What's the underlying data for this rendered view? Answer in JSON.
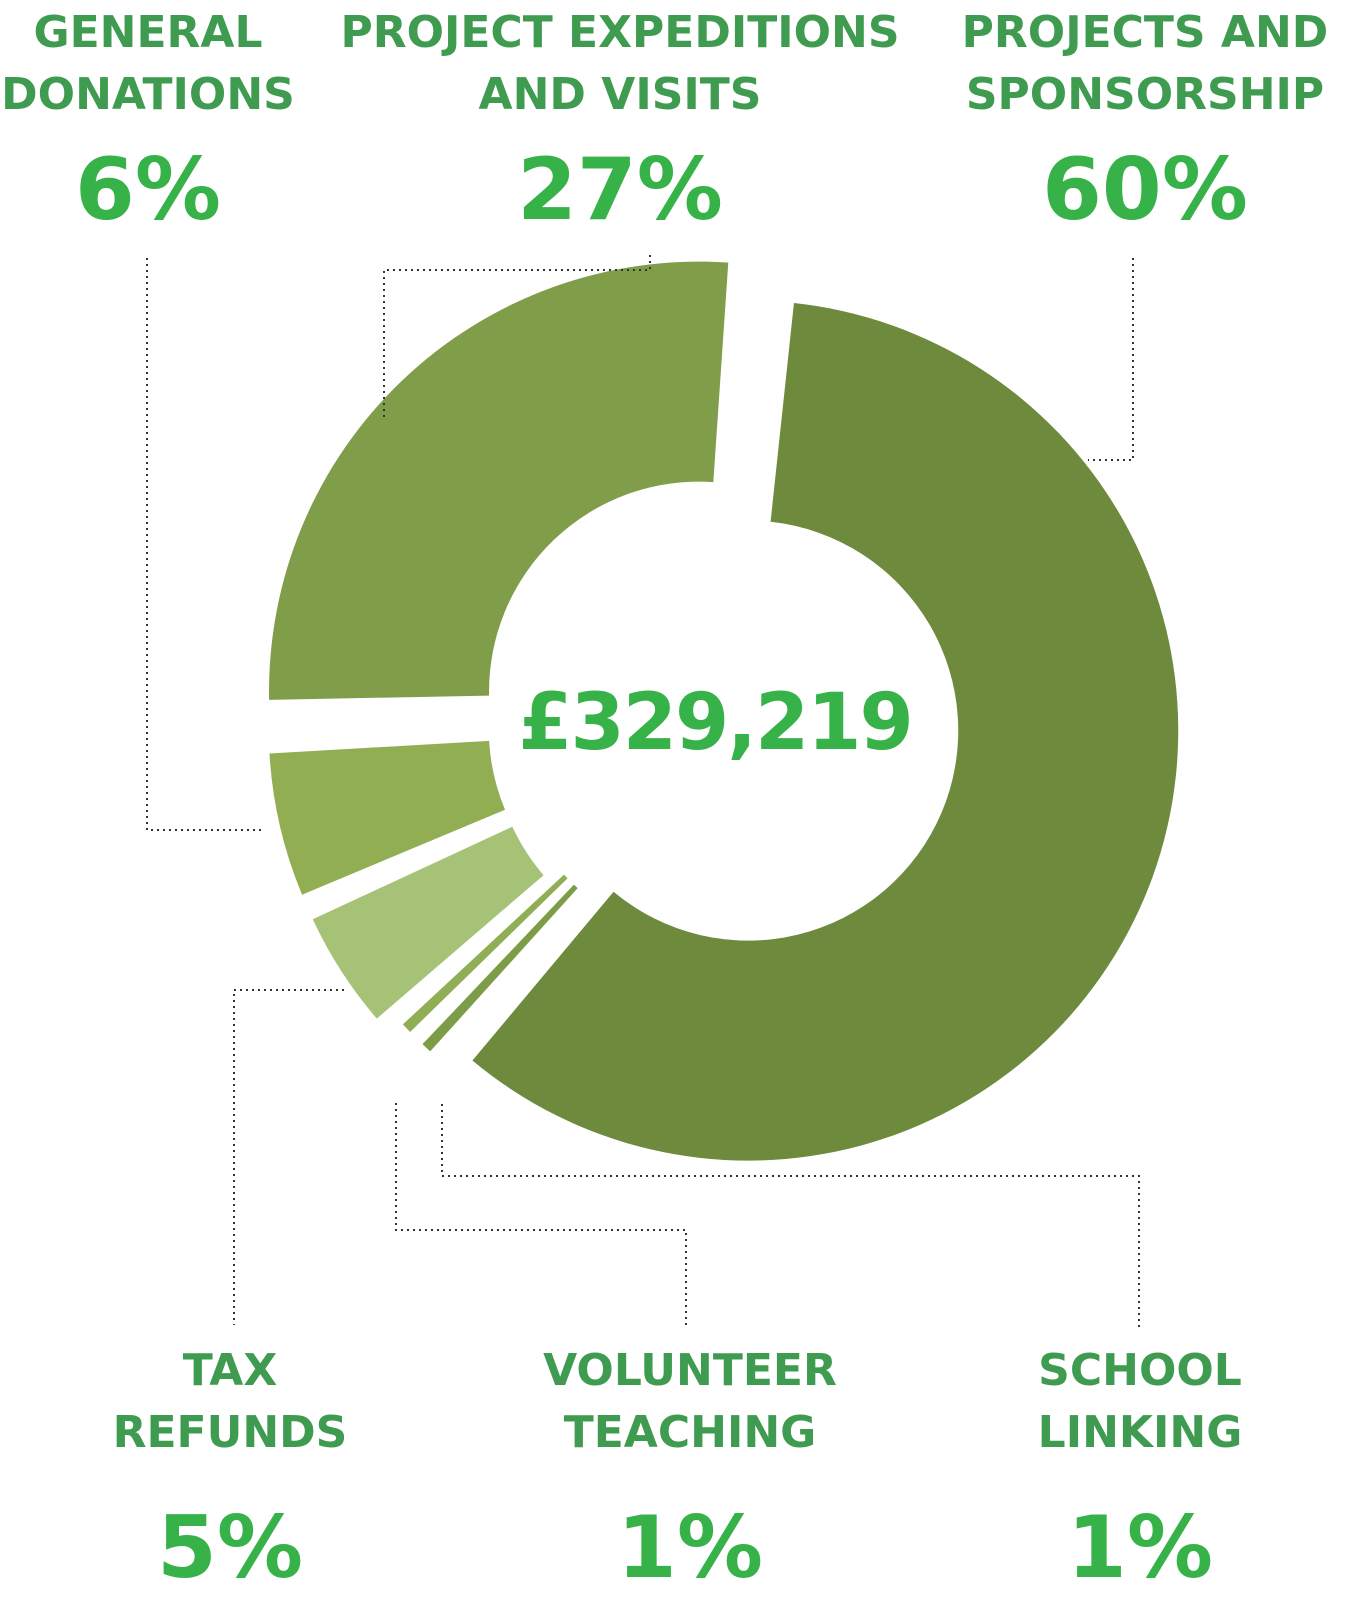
{
  "chart_data": {
    "type": "pie",
    "total_label": "£329,219",
    "slices": [
      {
        "label": "PROJECTS AND\nSPONSORSHIP",
        "value": 60,
        "value_label": "60%",
        "color": "#6e8a3d"
      },
      {
        "label": "SCHOOL\nLINKING",
        "value": 1,
        "value_label": "1%",
        "color": "#7d9c48"
      },
      {
        "label": "VOLUNTEER\nTEACHING",
        "value": 1,
        "value_label": "1%",
        "color": "#8fae55"
      },
      {
        "label": "TAX\nREFUNDS",
        "value": 5,
        "value_label": "5%",
        "color": "#a6c277"
      },
      {
        "label": "GENERAL\nDONATIONS",
        "value": 6,
        "value_label": "6%",
        "color": "#92ae52"
      },
      {
        "label": "PROJECT EXPEDITIONS\nAND VISITS",
        "value": 27,
        "value_label": "27%",
        "color": "#809d4a"
      }
    ]
  }
}
